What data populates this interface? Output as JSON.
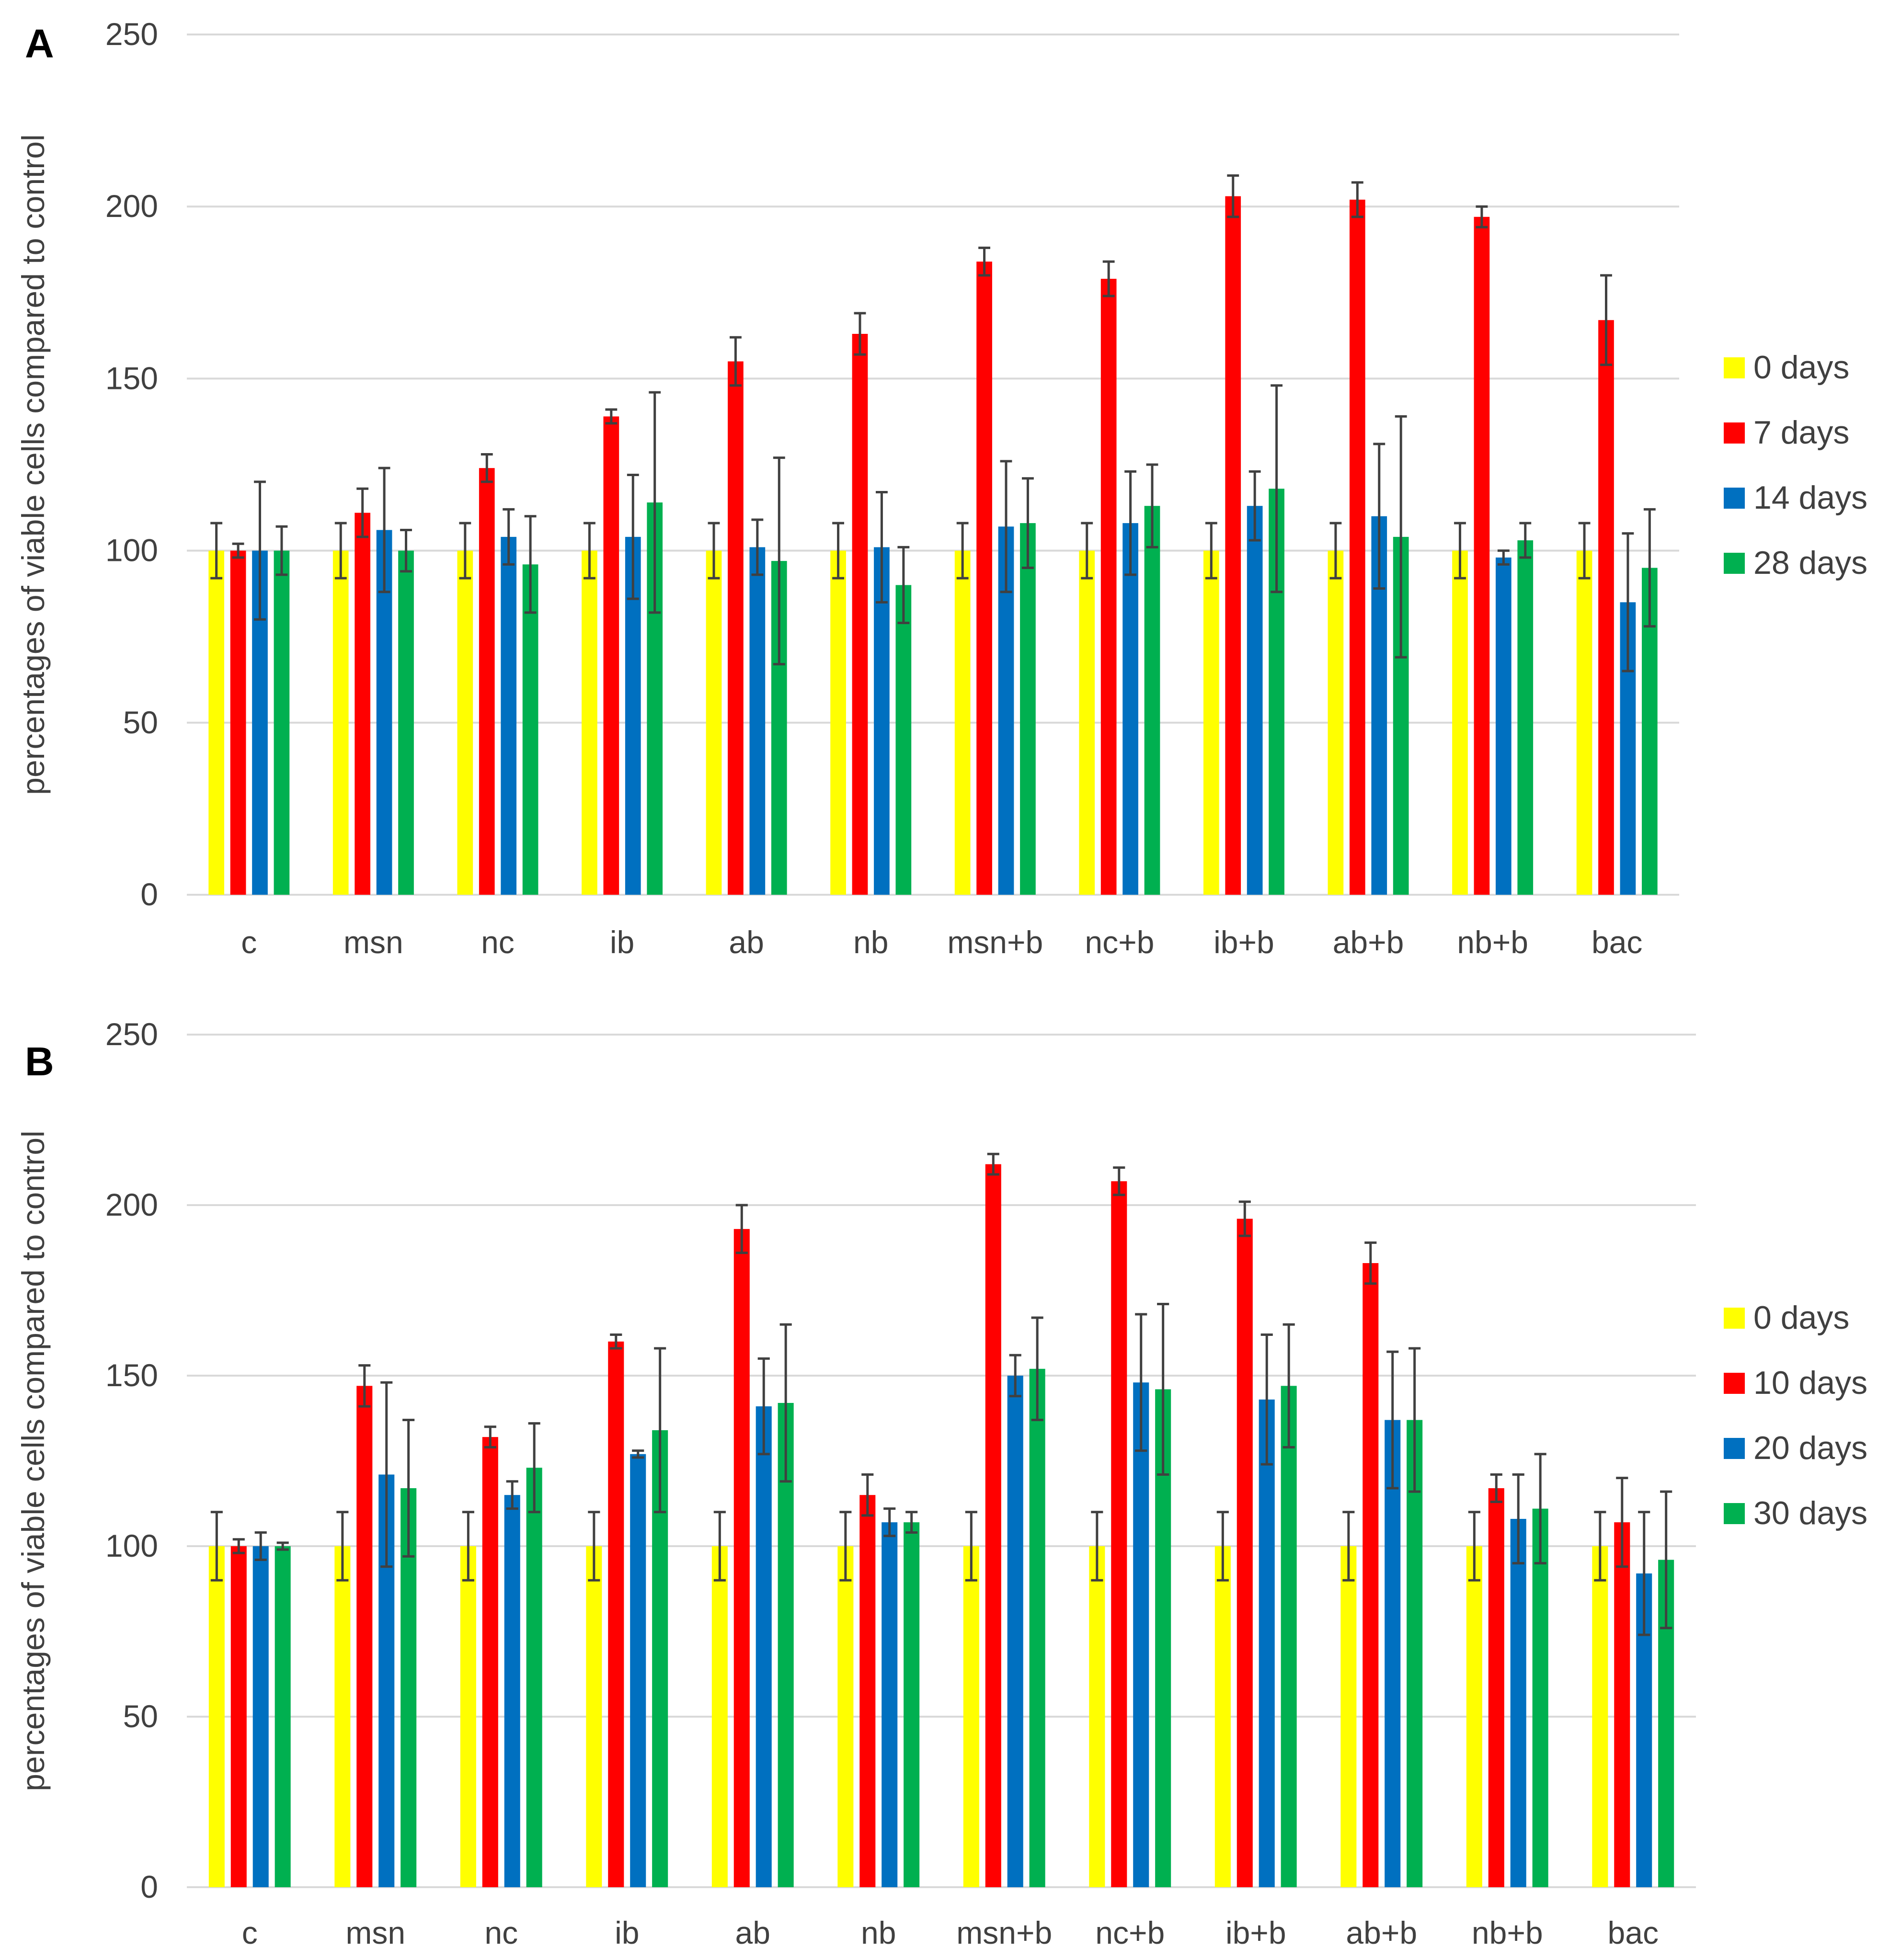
{
  "chart_data": [
    {
      "type": "bar",
      "panel_label": "A",
      "ylabel": "percentages of viable cells compared to control",
      "xlabel": "",
      "ylim": [
        0,
        250
      ],
      "yticks": [
        0,
        50,
        100,
        150,
        200,
        250
      ],
      "ytick_labels": [
        "0",
        "50",
        "100",
        "150",
        "200",
        "250"
      ],
      "grid": true,
      "legend_position": "right",
      "categories": [
        "c",
        "msn",
        "nc",
        "ib",
        "ab",
        "nb",
        "msn+b",
        "nc+b",
        "ib+b",
        "ab+b",
        "nb+b",
        "bac"
      ],
      "series": [
        {
          "name": "0 days",
          "color": "#FFFF00",
          "values": [
            100,
            100,
            100,
            100,
            100,
            100,
            100,
            100,
            100,
            100,
            100,
            100
          ],
          "errors": [
            8,
            8,
            8,
            8,
            8,
            8,
            8,
            8,
            8,
            8,
            8,
            8
          ]
        },
        {
          "name": "7 days",
          "color": "#FF0000",
          "values": [
            100,
            111,
            124,
            139,
            155,
            163,
            184,
            179,
            203,
            202,
            197,
            167
          ],
          "errors": [
            2,
            7,
            4,
            2,
            7,
            6,
            4,
            5,
            6,
            5,
            3,
            13
          ]
        },
        {
          "name": "14 days",
          "color": "#0070C0",
          "values": [
            100,
            106,
            104,
            104,
            101,
            101,
            107,
            108,
            113,
            110,
            98,
            85
          ],
          "errors": [
            20,
            18,
            8,
            18,
            8,
            16,
            19,
            15,
            10,
            21,
            2,
            20
          ]
        },
        {
          "name": "28 days",
          "color": "#00B050",
          "values": [
            100,
            100,
            96,
            114,
            97,
            90,
            108,
            113,
            118,
            104,
            103,
            95
          ],
          "errors": [
            7,
            6,
            14,
            32,
            30,
            11,
            13,
            12,
            30,
            35,
            5,
            17
          ]
        }
      ]
    },
    {
      "type": "bar",
      "panel_label": "B",
      "ylabel": "percentages of viable cells compared to control",
      "xlabel": "",
      "ylim": [
        0,
        250
      ],
      "yticks": [
        0,
        50,
        100,
        150,
        200,
        250
      ],
      "ytick_labels": [
        "0",
        "50",
        "100",
        "150",
        "200",
        "250"
      ],
      "grid": true,
      "legend_position": "right",
      "categories": [
        "c",
        "msn",
        "nc",
        "ib",
        "ab",
        "nb",
        "msn+b",
        "nc+b",
        "ib+b",
        "ab+b",
        "nb+b",
        "bac"
      ],
      "series": [
        {
          "name": "0 days",
          "color": "#FFFF00",
          "values": [
            100,
            100,
            100,
            100,
            100,
            100,
            100,
            100,
            100,
            100,
            100,
            100
          ],
          "errors": [
            10,
            10,
            10,
            10,
            10,
            10,
            10,
            10,
            10,
            10,
            10,
            10
          ]
        },
        {
          "name": "10 days",
          "color": "#FF0000",
          "values": [
            100,
            147,
            132,
            160,
            193,
            115,
            212,
            207,
            196,
            183,
            117,
            107
          ],
          "errors": [
            2,
            6,
            3,
            2,
            7,
            6,
            3,
            4,
            5,
            6,
            4,
            13
          ]
        },
        {
          "name": "20 days",
          "color": "#0070C0",
          "values": [
            100,
            121,
            115,
            127,
            141,
            107,
            150,
            148,
            143,
            137,
            108,
            92
          ],
          "errors": [
            4,
            27,
            4,
            1,
            14,
            4,
            6,
            20,
            19,
            20,
            13,
            18
          ]
        },
        {
          "name": "30 days",
          "color": "#00B050",
          "values": [
            100,
            117,
            123,
            134,
            142,
            107,
            152,
            146,
            147,
            137,
            111,
            96
          ],
          "errors": [
            1,
            20,
            13,
            24,
            23,
            3,
            15,
            25,
            18,
            21,
            16,
            20
          ]
        }
      ]
    }
  ]
}
